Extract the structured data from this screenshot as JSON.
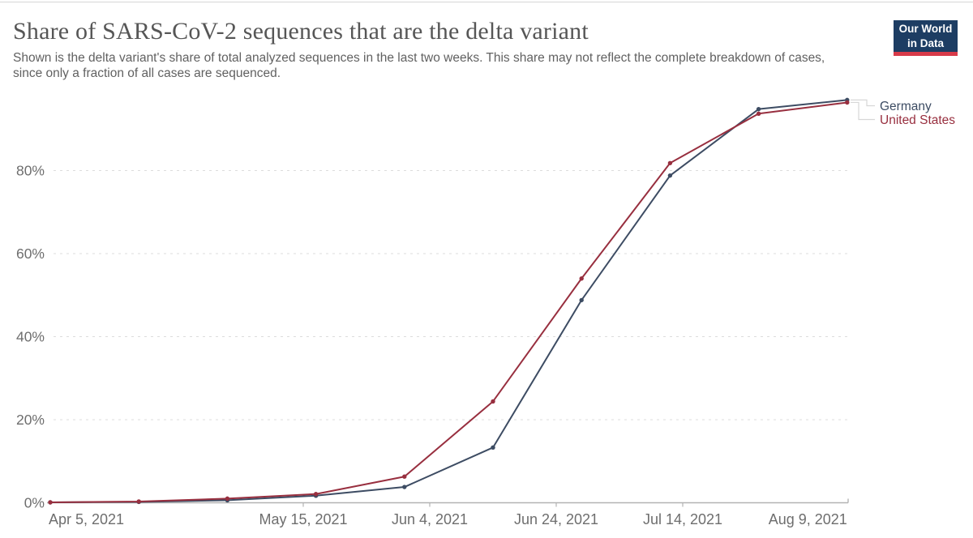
{
  "header": {
    "title": "Share of SARS-CoV-2 sequences that are the delta variant",
    "subtitle": "Shown is the delta variant's share of total analyzed sequences in the last two weeks. This share may not reflect the complete breakdown of cases, since only a fraction of all cases are sequenced.",
    "logo": {
      "line1": "Our World",
      "line2": "in Data",
      "bg_color": "#1d3d63",
      "stripe_color": "#d73a49"
    }
  },
  "chart_data": {
    "type": "line",
    "x": [
      "Apr 5, 2021",
      "Apr 19, 2021",
      "May 3, 2021",
      "May 17, 2021",
      "May 31, 2021",
      "Jun 14, 2021",
      "Jun 28, 2021",
      "Jul 12, 2021",
      "Jul 26, 2021",
      "Aug 9, 2021"
    ],
    "x_days": [
      0,
      14,
      28,
      42,
      56,
      70,
      84,
      98,
      112,
      126
    ],
    "series": [
      {
        "name": "Germany",
        "color": "#3d4c63",
        "values": [
          0.1,
          0.2,
          0.6,
          1.7,
          3.8,
          13.3,
          48.8,
          78.8,
          94.8,
          97.0
        ]
      },
      {
        "name": "United States",
        "color": "#982f3f",
        "values": [
          0.1,
          0.3,
          1.0,
          2.1,
          6.3,
          24.4,
          54.0,
          81.8,
          93.7,
          96.4
        ]
      }
    ],
    "ylabel": "",
    "xlabel": "",
    "ylim": [
      0,
      100
    ],
    "yticks": [
      {
        "value": 0,
        "label": "0%"
      },
      {
        "value": 20,
        "label": "20%"
      },
      {
        "value": 40,
        "label": "40%"
      },
      {
        "value": 60,
        "label": "60%"
      },
      {
        "value": 80,
        "label": "80%"
      }
    ],
    "xticks": [
      {
        "label": "Apr 5, 2021",
        "day": 0,
        "align": "start"
      },
      {
        "label": "May 15, 2021",
        "day": 40,
        "align": "middle"
      },
      {
        "label": "Jun 4, 2021",
        "day": 60,
        "align": "middle"
      },
      {
        "label": "Jun 24, 2021",
        "day": 80,
        "align": "middle"
      },
      {
        "label": "Jul 14, 2021",
        "day": 100,
        "align": "middle"
      },
      {
        "label": "Aug 9, 2021",
        "day": 126,
        "align": "end"
      }
    ],
    "grid": "horizontal-dashed",
    "legend_position": "right-of-line-ends",
    "tick_color": "#6e6e6e",
    "axis_color": "#b3b3b3",
    "grid_color": "#dcdcdc",
    "legend_connector_color": "#d7d7d7"
  }
}
